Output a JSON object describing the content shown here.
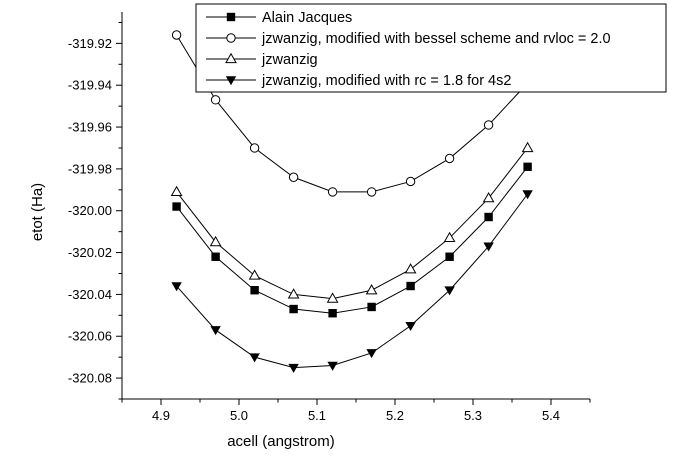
{
  "chart_data": {
    "type": "line",
    "xlabel": "acell (angstrom)",
    "ylabel": "etot (Ha)",
    "xlim": [
      4.85,
      5.45
    ],
    "ylim": [
      -320.09,
      -319.905
    ],
    "xticks": [
      4.9,
      5.0,
      5.1,
      5.2,
      5.3,
      5.4
    ],
    "xtick_labels": [
      "4.9",
      "5.0",
      "5.1",
      "5.2",
      "5.3",
      "5.4"
    ],
    "yticks": [
      -319.92,
      -319.94,
      -319.96,
      -319.98,
      -320.0,
      -320.02,
      -320.04,
      -320.06,
      -320.08
    ],
    "ytick_labels": [
      "-319.92",
      "-319.94",
      "-319.96",
      "-319.98",
      "-320.00",
      "-320.02",
      "-320.04",
      "-320.06",
      "-320.08"
    ],
    "grid": false,
    "legend_position": "top-right",
    "x": [
      4.92,
      4.97,
      5.02,
      5.07,
      5.12,
      5.17,
      5.22,
      5.27,
      5.32,
      5.37
    ],
    "series": [
      {
        "name": "Alain Jacques",
        "marker": "square-filled",
        "color": "#000000",
        "values": [
          -319.998,
          -320.022,
          -320.038,
          -320.047,
          -320.049,
          -320.046,
          -320.036,
          -320.022,
          -320.003,
          -319.979
        ]
      },
      {
        "name": "jzwanzig, modified with bessel scheme and rvloc = 2.0",
        "marker": "circle-open",
        "color": "#000000",
        "values": [
          -319.916,
          -319.947,
          -319.97,
          -319.984,
          -319.991,
          -319.991,
          -319.986,
          -319.975,
          -319.959,
          -319.939
        ]
      },
      {
        "name": "jzwanzig",
        "marker": "triangle-up-open",
        "color": "#000000",
        "values": [
          -319.991,
          -320.015,
          -320.031,
          -320.04,
          -320.042,
          -320.038,
          -320.028,
          -320.013,
          -319.994,
          -319.97
        ]
      },
      {
        "name": "jzwanzig, modified with rc = 1.8 for 4s2",
        "marker": "triangle-down-filled",
        "color": "#000000",
        "values": [
          -320.036,
          -320.057,
          -320.07,
          -320.075,
          -320.074,
          -320.068,
          -320.055,
          -320.038,
          -320.017,
          -319.992
        ]
      }
    ]
  }
}
